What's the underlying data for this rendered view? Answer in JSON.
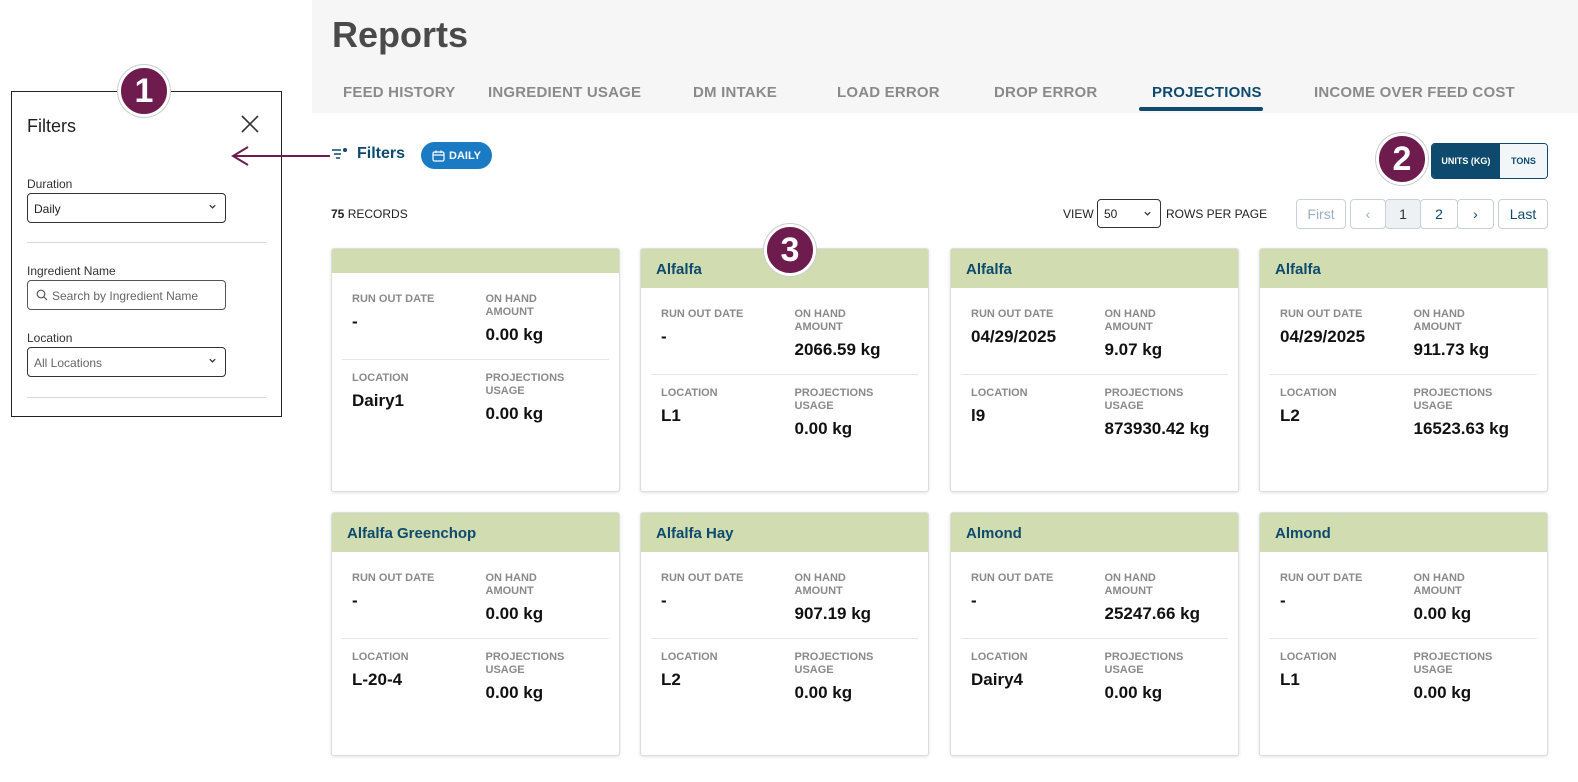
{
  "header": {
    "title": "Reports"
  },
  "tabs": [
    {
      "label": "FEED HISTORY"
    },
    {
      "label": "INGREDIENT USAGE"
    },
    {
      "label": "DM INTAKE"
    },
    {
      "label": "LOAD ERROR"
    },
    {
      "label": "DROP ERROR"
    },
    {
      "label": "PROJECTIONS",
      "active": true
    },
    {
      "label": "INCOME OVER FEED COST"
    }
  ],
  "filter_panel": {
    "title": "Filters",
    "duration": {
      "label": "Duration",
      "value": "Daily"
    },
    "ingredient": {
      "label": "Ingredient Name",
      "placeholder": "Search by Ingredient Name"
    },
    "location": {
      "label": "Location",
      "value": "All Locations"
    }
  },
  "callouts": {
    "one": "1",
    "two": "2",
    "three": "3"
  },
  "toolbar": {
    "filters_label": "Filters",
    "daily_chip": "DAILY",
    "units_kg": "UNITS (KG)",
    "units_tons": "TONS"
  },
  "records": {
    "count": "75",
    "suffix": "RECORDS"
  },
  "pagination": {
    "view_label": "VIEW",
    "rows_value": "50",
    "rows_per_page_label": "ROWS PER PAGE",
    "first": "First",
    "prev": "‹",
    "pages": [
      "1",
      "2"
    ],
    "next": "›",
    "last": "Last"
  },
  "card_labels": {
    "run_out_date": "RUN OUT DATE",
    "on_hand_amount_1": "ON HAND",
    "on_hand_amount_2": "AMOUNT",
    "location": "LOCATION",
    "projections_usage_1": "PROJECTIONS",
    "projections_usage_2": "USAGE"
  },
  "cards": [
    {
      "name": "",
      "run_out_date": "-",
      "on_hand": "0.00 kg",
      "location": "Dairy1",
      "usage": "0.00 kg"
    },
    {
      "name": "Alfalfa",
      "run_out_date": "-",
      "on_hand": "2066.59 kg",
      "location": "L1",
      "usage": "0.00 kg"
    },
    {
      "name": "Alfalfa",
      "run_out_date": "04/29/2025",
      "on_hand": "9.07 kg",
      "location": "l9",
      "usage": "873930.42 kg"
    },
    {
      "name": "Alfalfa",
      "run_out_date": "04/29/2025",
      "on_hand": "911.73 kg",
      "location": "L2",
      "usage": "16523.63 kg"
    },
    {
      "name": "Alfalfa Greenchop",
      "run_out_date": "-",
      "on_hand": "0.00 kg",
      "location": "L-20-4",
      "usage": "0.00 kg"
    },
    {
      "name": "Alfalfa Hay",
      "run_out_date": "-",
      "on_hand": "907.19 kg",
      "location": "L2",
      "usage": "0.00 kg"
    },
    {
      "name": "Almond",
      "run_out_date": "-",
      "on_hand": "25247.66 kg",
      "location": "Dairy4",
      "usage": "0.00 kg"
    },
    {
      "name": "Almond",
      "run_out_date": "-",
      "on_hand": "0.00 kg",
      "location": "L1",
      "usage": "0.00 kg"
    }
  ],
  "colors": {
    "brand": "#0d4a6e",
    "accent": "#1a7ac4",
    "card_header": "#d1ddb0",
    "callout": "#6e1b4e"
  }
}
